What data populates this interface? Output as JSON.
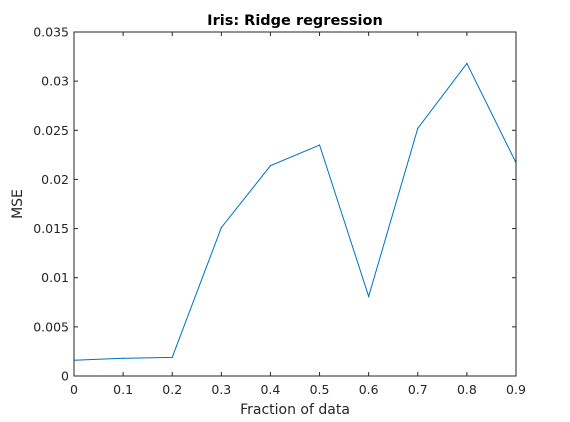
{
  "chart_data": {
    "type": "line",
    "title": "Iris: Ridge regression",
    "xlabel": "Fraction of data",
    "ylabel": "MSE",
    "xlim": [
      0,
      0.9
    ],
    "ylim": [
      0,
      0.035
    ],
    "x_ticks": [
      "0",
      "0.1",
      "0.2",
      "0.3",
      "0.4",
      "0.5",
      "0.6",
      "0.7",
      "0.8",
      "0.9"
    ],
    "y_ticks": [
      "0",
      "0.005",
      "0.01",
      "0.015",
      "0.02",
      "0.025",
      "0.03",
      "0.035"
    ],
    "grid": false,
    "series": [
      {
        "color": "#0072bd",
        "x": [
          0,
          0.1,
          0.2,
          0.3,
          0.4,
          0.5,
          0.6,
          0.7,
          0.8,
          0.9
        ],
        "values": [
          0.0016,
          0.0018,
          0.0019,
          0.0151,
          0.0214,
          0.0235,
          0.0081,
          0.0252,
          0.0318,
          0.0217
        ]
      }
    ]
  }
}
